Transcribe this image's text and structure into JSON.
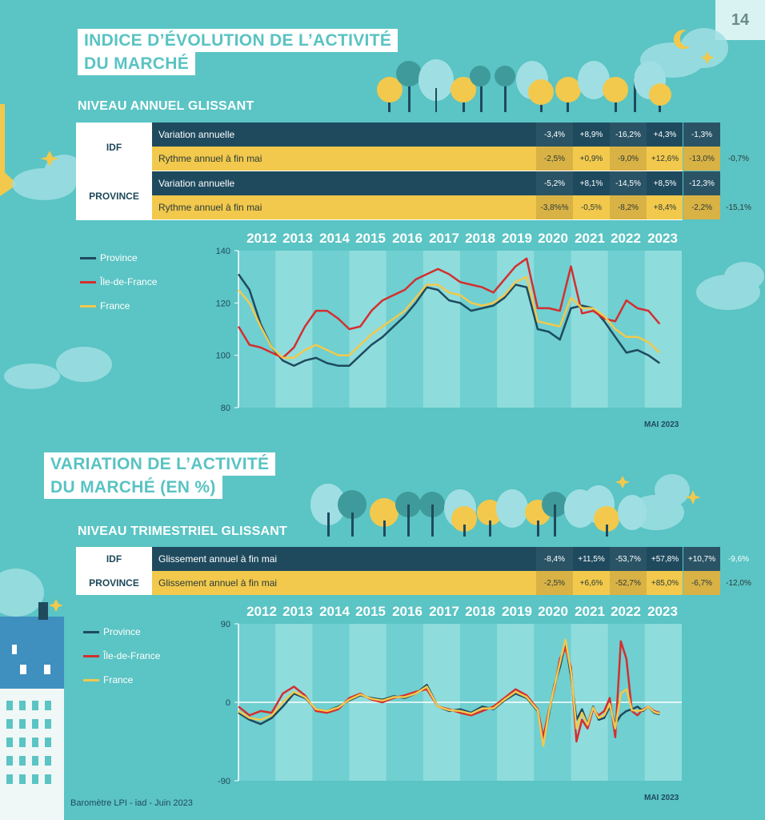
{
  "page_number": "14",
  "section1": {
    "title_line1": "INDICE D’ÉVOLUTION DE L’ACTIVITÉ",
    "title_line2": "DU MARCHÉ",
    "subtitle": "Niveau annuel glissant",
    "table": [
      {
        "group": "IDF",
        "label": "Variation annuelle",
        "values": [
          "-3,4%",
          "+8,9%",
          "-16,2%",
          "+4,3%",
          "-1,3%",
          ""
        ]
      },
      {
        "group": "",
        "label": "Rythme annuel à fin mai",
        "values": [
          "-2,5%",
          "+0,9%",
          "-9,0%",
          "+12,6%",
          "-13,0%",
          "-0,7%"
        ]
      },
      {
        "group": "PROVINCE",
        "label": "Variation annuelle",
        "values": [
          "-5,2%",
          "+8,1%",
          "-14,5%",
          "+8,5%",
          "-12,3%",
          ""
        ]
      },
      {
        "group": "",
        "label": "Rythme annuel à fin mai",
        "values": [
          "-3,8%%",
          "-0,5%",
          "-8,2%",
          "+8,4%",
          "-2,2%",
          "-15,1%"
        ]
      }
    ],
    "source_note": "MAI 2023"
  },
  "section2": {
    "title_line1": "VARIATION DE L’ACTIVITÉ",
    "title_line2": "DU MARCHÉ (EN %)",
    "subtitle": "Niveau trimestriel glissant",
    "table": [
      {
        "group": "IDF",
        "label": "Glissement annuel à fin mai",
        "values": [
          "-8,4%",
          "+11,5%",
          "-53,7%",
          "+57,8%",
          "+10,7%",
          "-9,6%"
        ]
      },
      {
        "group": "PROVINCE",
        "label": "Glissement annuel à fin mai",
        "values": [
          "-2,5%",
          "+6,6%",
          "-52,7%",
          "+85,0%",
          "-6,7%",
          "-12,0%"
        ]
      }
    ],
    "source_note": "MAI 2023"
  },
  "footer": "Baromètre LPI - iad - Juin 2023",
  "colors": {
    "province": "#1f4a5e",
    "idf": "#d32f2f",
    "france": "#f2c94c",
    "background": "#5bc4c4"
  },
  "chart_data": [
    {
      "type": "line",
      "years": [
        "2012",
        "2013",
        "2014",
        "2015",
        "2016",
        "2017",
        "2018",
        "2019",
        "2020",
        "2021",
        "2022",
        "2023"
      ],
      "ylim": [
        80,
        140
      ],
      "yticks": [
        "80",
        "100",
        "120",
        "140"
      ],
      "legend": [
        "Province",
        "Île-de-France",
        "France"
      ],
      "series": [
        {
          "name": "Province",
          "x": [
            2012.0,
            2012.3,
            2012.6,
            2012.9,
            2013.2,
            2013.5,
            2013.8,
            2014.1,
            2014.4,
            2014.7,
            2015.0,
            2015.3,
            2015.6,
            2015.9,
            2016.2,
            2016.5,
            2016.8,
            2017.1,
            2017.4,
            2017.7,
            2018.0,
            2018.3,
            2018.6,
            2018.9,
            2019.2,
            2019.5,
            2019.8,
            2020.1,
            2020.4,
            2020.7,
            2021.0,
            2021.3,
            2021.6,
            2021.9,
            2022.2,
            2022.5,
            2022.8,
            2023.1,
            2023.4
          ],
          "values": [
            131,
            125,
            112,
            103,
            98,
            96,
            98,
            99,
            97,
            96,
            96,
            100,
            104,
            107,
            111,
            115,
            120,
            126,
            125,
            121,
            120,
            117,
            118,
            119,
            122,
            127,
            126,
            110,
            109,
            106,
            118,
            119,
            118,
            113,
            107,
            101,
            102,
            100,
            97
          ]
        },
        {
          "name": "Île-de-France",
          "x": [
            2012.0,
            2012.3,
            2012.6,
            2012.9,
            2013.2,
            2013.5,
            2013.8,
            2014.1,
            2014.4,
            2014.7,
            2015.0,
            2015.3,
            2015.6,
            2015.9,
            2016.2,
            2016.5,
            2016.8,
            2017.1,
            2017.4,
            2017.7,
            2018.0,
            2018.3,
            2018.6,
            2018.9,
            2019.2,
            2019.5,
            2019.8,
            2020.1,
            2020.4,
            2020.7,
            2021.0,
            2021.3,
            2021.6,
            2021.9,
            2022.2,
            2022.5,
            2022.8,
            2023.1,
            2023.4
          ],
          "values": [
            111,
            104,
            103,
            101,
            99,
            103,
            111,
            117,
            117,
            114,
            110,
            111,
            117,
            121,
            123,
            125,
            129,
            131,
            133,
            131,
            128,
            127,
            126,
            124,
            129,
            134,
            137,
            118,
            118,
            117,
            134,
            116,
            117,
            114,
            113,
            121,
            118,
            117,
            112
          ]
        },
        {
          "name": "France",
          "x": [
            2012.0,
            2012.3,
            2012.6,
            2012.9,
            2013.2,
            2013.5,
            2013.8,
            2014.1,
            2014.4,
            2014.7,
            2015.0,
            2015.3,
            2015.6,
            2015.9,
            2016.2,
            2016.5,
            2016.8,
            2017.1,
            2017.4,
            2017.7,
            2018.0,
            2018.3,
            2018.6,
            2018.9,
            2019.2,
            2019.5,
            2019.8,
            2020.1,
            2020.4,
            2020.7,
            2021.0,
            2021.3,
            2021.6,
            2021.9,
            2022.2,
            2022.5,
            2022.8,
            2023.1,
            2023.4
          ],
          "values": [
            125,
            120,
            111,
            103,
            99,
            99,
            102,
            104,
            102,
            100,
            100,
            104,
            108,
            111,
            114,
            117,
            122,
            127,
            127,
            124,
            123,
            120,
            119,
            120,
            123,
            128,
            130,
            113,
            112,
            111,
            122,
            118,
            118,
            115,
            110,
            107,
            107,
            105,
            101
          ]
        }
      ]
    },
    {
      "type": "line",
      "years": [
        "2012",
        "2013",
        "2014",
        "2015",
        "2016",
        "2017",
        "2018",
        "2019",
        "2020",
        "2021",
        "2022",
        "2023"
      ],
      "ylim": [
        -90,
        90
      ],
      "yticks": [
        "-90",
        "0",
        "90"
      ],
      "legend": [
        "Province",
        "Île-de-France",
        "France"
      ],
      "series": [
        {
          "name": "Province",
          "x": [
            2012.0,
            2012.3,
            2012.6,
            2012.9,
            2013.2,
            2013.5,
            2013.8,
            2014.1,
            2014.4,
            2014.7,
            2015.0,
            2015.3,
            2015.6,
            2015.9,
            2016.2,
            2016.5,
            2016.8,
            2017.1,
            2017.4,
            2017.7,
            2018.0,
            2018.3,
            2018.6,
            2018.9,
            2019.2,
            2019.5,
            2019.8,
            2020.1,
            2020.25,
            2020.4,
            2020.55,
            2020.7,
            2020.85,
            2021.0,
            2021.15,
            2021.3,
            2021.45,
            2021.6,
            2021.75,
            2021.9,
            2022.05,
            2022.2,
            2022.35,
            2022.5,
            2022.65,
            2022.8,
            2022.95,
            2023.1,
            2023.25,
            2023.4
          ],
          "values": [
            -12,
            -20,
            -25,
            -18,
            -5,
            10,
            5,
            -8,
            -10,
            -5,
            2,
            8,
            5,
            3,
            7,
            5,
            10,
            20,
            -5,
            -10,
            -8,
            -12,
            -5,
            -8,
            2,
            10,
            5,
            -10,
            -45,
            -15,
            20,
            40,
            68,
            30,
            -20,
            -8,
            -25,
            -5,
            -20,
            -18,
            -5,
            -25,
            -15,
            -10,
            -8,
            -5,
            -10,
            -5,
            -12,
            -14
          ]
        },
        {
          "name": "Île-de-France",
          "x": [
            2012.0,
            2012.3,
            2012.6,
            2012.9,
            2013.2,
            2013.5,
            2013.8,
            2014.1,
            2014.4,
            2014.7,
            2015.0,
            2015.3,
            2015.6,
            2015.9,
            2016.2,
            2016.5,
            2016.8,
            2017.1,
            2017.4,
            2017.7,
            2018.0,
            2018.3,
            2018.6,
            2018.9,
            2019.2,
            2019.5,
            2019.8,
            2020.1,
            2020.25,
            2020.4,
            2020.55,
            2020.7,
            2020.85,
            2021.0,
            2021.15,
            2021.3,
            2021.45,
            2021.6,
            2021.75,
            2021.9,
            2022.05,
            2022.2,
            2022.35,
            2022.5,
            2022.65,
            2022.8,
            2022.95,
            2023.1,
            2023.25,
            2023.4
          ],
          "values": [
            -5,
            -15,
            -10,
            -12,
            10,
            18,
            8,
            -10,
            -12,
            -8,
            5,
            10,
            3,
            0,
            5,
            8,
            12,
            15,
            -5,
            -8,
            -12,
            -15,
            -10,
            -5,
            5,
            15,
            8,
            -8,
            -40,
            -10,
            15,
            50,
            62,
            40,
            -45,
            -20,
            -30,
            -8,
            -15,
            -10,
            5,
            -40,
            70,
            50,
            -10,
            -15,
            -8,
            -5,
            -10,
            -12
          ]
        },
        {
          "name": "France",
          "x": [
            2012.0,
            2012.3,
            2012.6,
            2012.9,
            2013.2,
            2013.5,
            2013.8,
            2014.1,
            2014.4,
            2014.7,
            2015.0,
            2015.3,
            2015.6,
            2015.9,
            2016.2,
            2016.5,
            2016.8,
            2017.1,
            2017.4,
            2017.7,
            2018.0,
            2018.3,
            2018.6,
            2018.9,
            2019.2,
            2019.5,
            2019.8,
            2020.1,
            2020.25,
            2020.4,
            2020.55,
            2020.7,
            2020.85,
            2021.0,
            2021.15,
            2021.3,
            2021.45,
            2021.6,
            2021.75,
            2021.9,
            2022.05,
            2022.2,
            2022.35,
            2022.5,
            2022.65,
            2022.8,
            2022.95,
            2023.1,
            2023.25,
            2023.4
          ],
          "values": [
            -10,
            -18,
            -20,
            -15,
            0,
            12,
            6,
            -8,
            -10,
            -6,
            3,
            9,
            4,
            2,
            6,
            6,
            10,
            18,
            -5,
            -9,
            -10,
            -13,
            -7,
            -7,
            3,
            12,
            6,
            -9,
            -50,
            -12,
            18,
            45,
            72,
            35,
            -30,
            -12,
            -26,
            -6,
            -18,
            -15,
            -2,
            -30,
            10,
            15,
            -9,
            -10,
            -9,
            -5,
            -11,
            -13
          ]
        }
      ]
    }
  ]
}
